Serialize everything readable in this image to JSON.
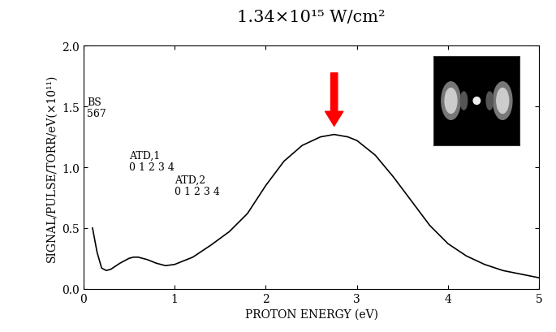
{
  "chart_data": {
    "type": "line",
    "title": "1.34×10¹⁵ W/cm²",
    "x_label": "PROTON ENERGY (eV)",
    "y_label": "SIGNAL/PULSE/TORR/eV(×10¹¹)",
    "annotations": [
      "BS\n567",
      "ATD,1\n0 1 2 3 4",
      "ATD,2\n0 1 2 3 4"
    ],
    "x": [
      0.1,
      0.15,
      0.2,
      0.25,
      0.3,
      0.4,
      0.5,
      0.55,
      0.6,
      0.7,
      0.8,
      0.9,
      1.0,
      1.2,
      1.4,
      1.6,
      1.8,
      2.0,
      2.2,
      2.4,
      2.6,
      2.75,
      2.9,
      3.0,
      3.2,
      3.4,
      3.6,
      3.8,
      4.0,
      4.2,
      4.4,
      4.6,
      4.8,
      5.0
    ],
    "values": [
      0.5,
      0.3,
      0.17,
      0.15,
      0.16,
      0.21,
      0.25,
      0.26,
      0.26,
      0.24,
      0.21,
      0.19,
      0.2,
      0.26,
      0.36,
      0.47,
      0.62,
      0.85,
      1.05,
      1.18,
      1.25,
      1.27,
      1.25,
      1.22,
      1.1,
      0.92,
      0.72,
      0.52,
      0.37,
      0.27,
      0.2,
      0.15,
      0.12,
      0.09
    ],
    "color": "#000000",
    "xlim": [
      0,
      5
    ],
    "xticks": [
      0,
      1,
      2,
      3,
      4,
      5
    ],
    "ylim": [
      0.0,
      2.0
    ],
    "yticks": [
      0.0,
      0.5,
      1.0,
      1.5,
      2.0
    ],
    "grid": false
  }
}
